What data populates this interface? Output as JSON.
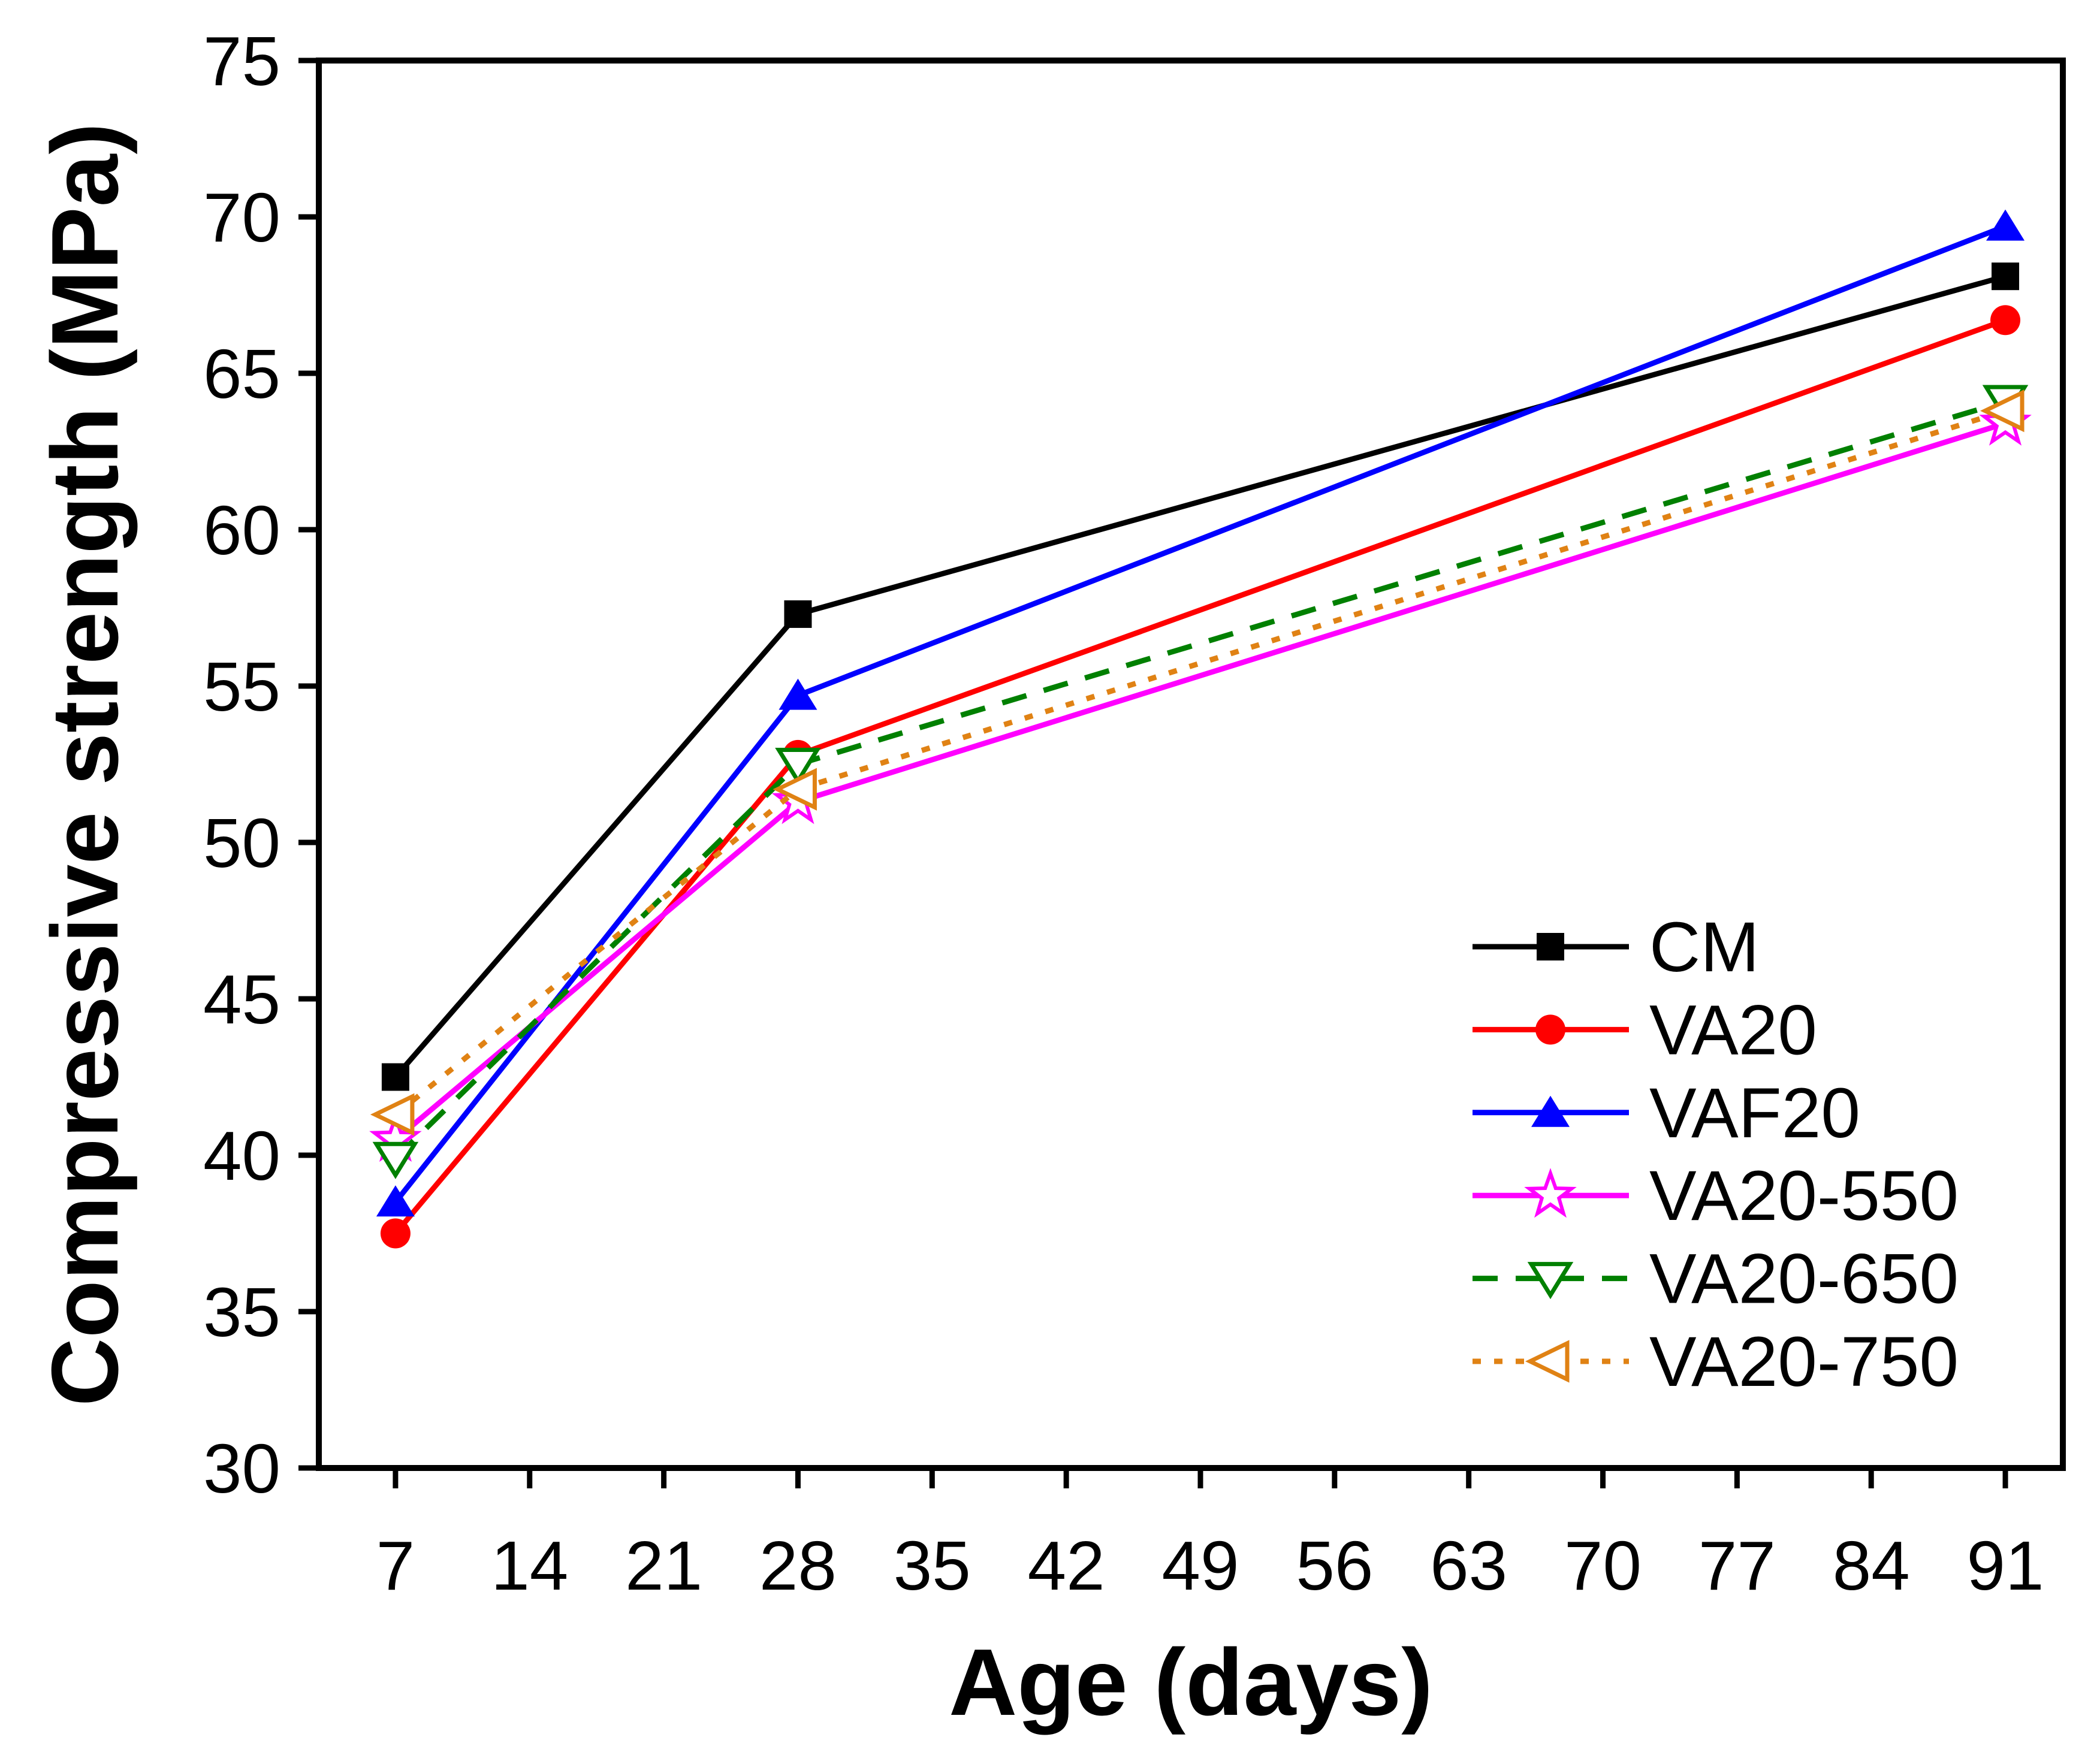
{
  "figure": {
    "background": "#ffffff",
    "frame_color": "#000000"
  },
  "chart_data": {
    "type": "line",
    "title": "",
    "xlabel": "Age (days)",
    "ylabel": "Compressive strength (MPa)",
    "x": [
      7,
      28,
      91
    ],
    "xticks": [
      7,
      14,
      21,
      28,
      35,
      42,
      49,
      56,
      63,
      70,
      77,
      84,
      91
    ],
    "yticks": [
      30,
      35,
      40,
      45,
      50,
      55,
      60,
      65,
      70,
      75
    ],
    "xlim": [
      3,
      94
    ],
    "ylim": [
      30,
      75
    ],
    "grid": false,
    "legend_position": "inside lower right",
    "series": [
      {
        "name": "CM",
        "color": "#000000",
        "line": "solid",
        "marker": "square-filled",
        "values": [
          42.5,
          57.3,
          68.1
        ]
      },
      {
        "name": "VA20",
        "color": "#ff0000",
        "line": "solid",
        "marker": "circle-filled",
        "values": [
          37.5,
          52.8,
          66.7
        ]
      },
      {
        "name": "VAF20",
        "color": "#0000ff",
        "line": "solid",
        "marker": "triangle-up-filled",
        "values": [
          38.5,
          54.7,
          69.7
        ]
      },
      {
        "name": "VA20-550",
        "color": "#ff00ff",
        "line": "solid",
        "marker": "star-open",
        "values": [
          40.5,
          51.3,
          63.4
        ]
      },
      {
        "name": "VA20-650",
        "color": "#008000",
        "line": "dashed",
        "marker": "triangle-down-open",
        "values": [
          39.9,
          52.5,
          64.1
        ]
      },
      {
        "name": "VA20-750",
        "color": "#e08214",
        "line": "dotted",
        "marker": "triangle-left-open",
        "values": [
          41.3,
          51.7,
          63.8
        ]
      }
    ]
  }
}
